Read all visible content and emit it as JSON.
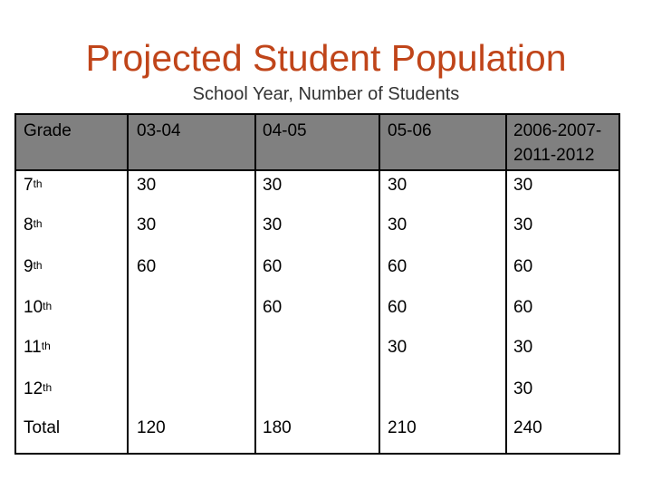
{
  "title": "Projected Student Population",
  "subtitle": "School Year, Number of Students",
  "table": {
    "headers": [
      "Grade",
      "03-04",
      "04-05",
      "05-06",
      "2006-2007-",
      "2011-2012"
    ],
    "rows": [
      {
        "grade": "7",
        "suffix": "th",
        "values": [
          "30",
          "30",
          "30",
          "30"
        ]
      },
      {
        "grade": "8",
        "suffix": "th",
        "values": [
          "30",
          "30",
          "30",
          "30"
        ]
      },
      {
        "grade": "9",
        "suffix": "th",
        "values": [
          "60",
          "60",
          "60",
          "60"
        ]
      },
      {
        "grade": "10",
        "suffix": "th",
        "values": [
          "",
          "60",
          "60",
          "60"
        ]
      },
      {
        "grade": "11",
        "suffix": "th",
        "values": [
          "",
          "",
          "30",
          "30"
        ]
      },
      {
        "grade": "12",
        "suffix": "th",
        "values": [
          "",
          "",
          "",
          "30"
        ]
      },
      {
        "grade": "Total",
        "suffix": "",
        "values": [
          "120",
          "180",
          "210",
          "240"
        ]
      }
    ]
  }
}
